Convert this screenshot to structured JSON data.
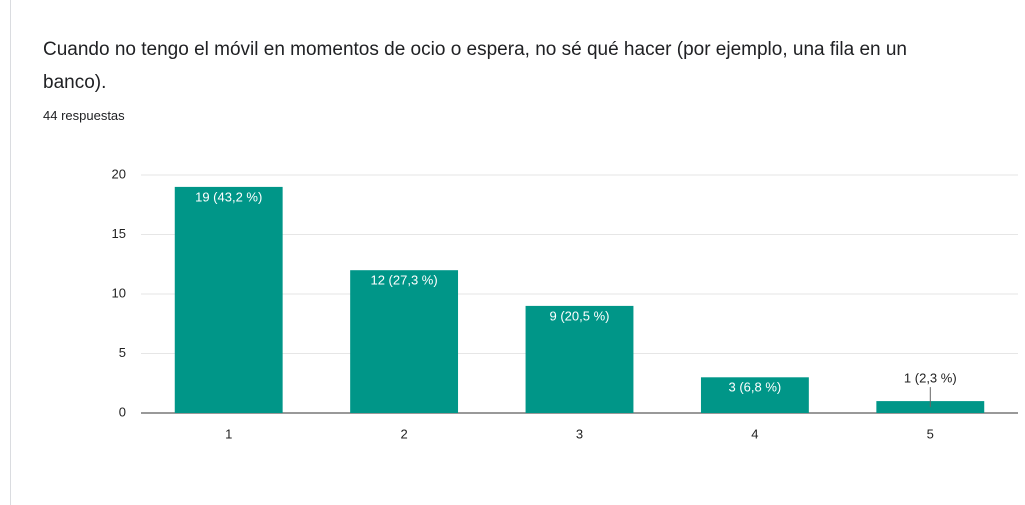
{
  "chart_data": {
    "type": "bar",
    "title": "Cuando no tengo el móvil en momentos de ocio o espera, no sé qué hacer (por ejemplo, una fila en un banco).",
    "subtitle": "44 respuestas",
    "categories": [
      "1",
      "2",
      "3",
      "4",
      "5"
    ],
    "values": [
      19,
      12,
      9,
      3,
      1
    ],
    "value_labels": [
      "19 (43,2 %)",
      "12 (27,3 %)",
      "9 (20,5 %)",
      "3 (6,8 %)",
      "1 (2,3 %)"
    ],
    "color": "#009688",
    "ylim": [
      0,
      20
    ],
    "yticks": [
      0,
      5,
      10,
      15,
      20
    ],
    "grid": true
  }
}
